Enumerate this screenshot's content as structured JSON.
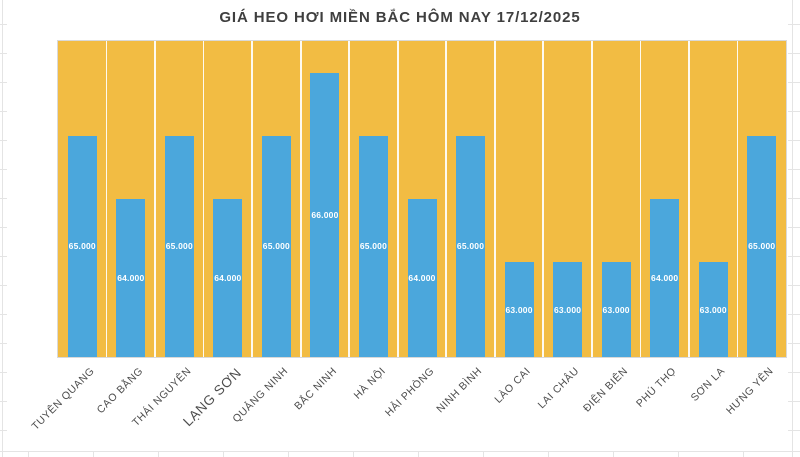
{
  "chart_data": {
    "type": "bar",
    "title": "GIÁ HEO HƠI MIỀN BẮC HÔM NAY 17/12/2025",
    "categories": [
      "TUYÊN QUANG",
      "CAO BẰNG",
      "THÁI NGUYÊN",
      "LẠNG SƠN",
      "QUẢNG NINH",
      "BẮC NINH",
      "HÀ NỘI",
      "HẢI PHÒNG",
      "NINH BÌNH",
      "LÀO CAI",
      "LAI CHÂU",
      "ĐIỆN BIÊN",
      "PHÚ THỌ",
      "SƠN LA",
      "HƯNG YÊN"
    ],
    "values": [
      65000,
      64000,
      65000,
      64000,
      65000,
      66000,
      65000,
      64000,
      65000,
      63000,
      63000,
      63000,
      64000,
      63000,
      65000
    ],
    "value_labels": [
      "65.000",
      "64.000",
      "65.000",
      "64.000",
      "65.000",
      "66.000",
      "65.000",
      "64.000",
      "65.000",
      "63.000",
      "63.000",
      "63.000",
      "64.000",
      "63.000",
      "65.000"
    ],
    "emphasized_category_index": 3,
    "xlabel": "",
    "ylabel": "",
    "ylim": [
      61500,
      66500
    ],
    "axis_ticks_visible": false,
    "legend": "none",
    "grid": "white vertical separators between category columns",
    "data_label_position": "center",
    "colors": {
      "bar": "#4BA7DC",
      "plot_background": "#F2BC43",
      "column_separator": "#FFFFFF",
      "value_label_text": "#FFFFFF",
      "category_label_text": "#4D4D4D",
      "title_text": "#3F3F3F",
      "canvas_background": "#FFFFFF",
      "worksheet_gridline": "#E4E4E4"
    }
  }
}
